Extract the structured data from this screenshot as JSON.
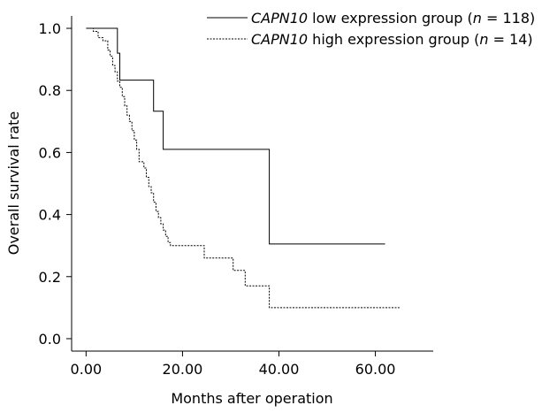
{
  "chart_data": {
    "type": "line",
    "subtype": "kaplan-meier step curve",
    "title": "",
    "xlabel": "Months after operation",
    "ylabel": "Overall survival rate",
    "xlim": [
      -3,
      72
    ],
    "ylim": [
      -0.04,
      1.04
    ],
    "xticks": [
      0,
      20,
      40,
      60
    ],
    "xtick_labels": [
      "0.00",
      "20.00",
      "40.00",
      "60.00"
    ],
    "yticks": [
      0.0,
      0.2,
      0.4,
      0.6,
      0.8,
      1.0
    ],
    "ytick_labels": [
      "0.0",
      "0.2",
      "0.4",
      "0.6",
      "0.8",
      "1.0"
    ],
    "grid": false,
    "legend_position": "top-right",
    "series": [
      {
        "legend_gene": "CAPN10",
        "legend_rest_a": " low expression group (",
        "legend_n": "n",
        "legend_rest_b": " = 118)",
        "line_style": "solid",
        "color": "#000000",
        "x": [
          0,
          6.5,
          7.0,
          14.0,
          16.0,
          38.0,
          62.0
        ],
        "y": [
          1.0,
          0.92,
          0.833,
          0.733,
          0.61,
          0.305,
          0.305
        ]
      },
      {
        "legend_gene": "CAPN10",
        "legend_rest_a": " high expression group (",
        "legend_n": "n",
        "legend_rest_b": " = 14)",
        "line_style": "dashed",
        "color": "#000000",
        "x": [
          0,
          1.5,
          2.5,
          3.5,
          4.5,
          5.0,
          5.5,
          6.0,
          6.5,
          7.0,
          7.5,
          8.0,
          8.5,
          9.0,
          9.5,
          10.0,
          10.5,
          11.0,
          12.0,
          12.5,
          13.0,
          13.5,
          14.0,
          14.5,
          15.0,
          15.5,
          16.0,
          16.5,
          17.0,
          17.5,
          24.5,
          30.5,
          33.0,
          38.0,
          65.0
        ],
        "y": [
          1.0,
          0.99,
          0.97,
          0.96,
          0.93,
          0.91,
          0.88,
          0.86,
          0.83,
          0.81,
          0.78,
          0.75,
          0.72,
          0.7,
          0.67,
          0.64,
          0.61,
          0.57,
          0.55,
          0.52,
          0.49,
          0.47,
          0.44,
          0.41,
          0.39,
          0.37,
          0.35,
          0.33,
          0.31,
          0.3,
          0.26,
          0.22,
          0.17,
          0.1,
          0.1
        ]
      }
    ]
  }
}
